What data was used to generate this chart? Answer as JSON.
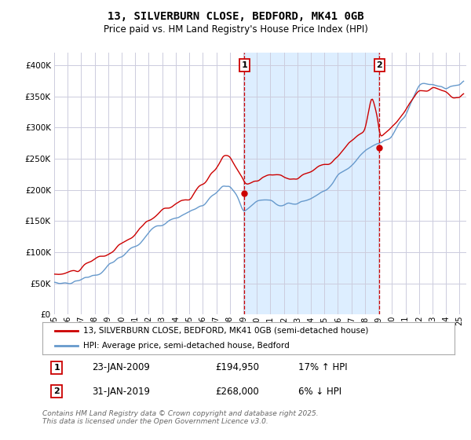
{
  "title": "13, SILVERBURN CLOSE, BEDFORD, MK41 0GB",
  "subtitle": "Price paid vs. HM Land Registry's House Price Index (HPI)",
  "fig_background": "#ffffff",
  "plot_background": "#ffffff",
  "shade_color": "#ddeeff",
  "grid_color": "#ccccdd",
  "red_color": "#cc0000",
  "blue_color": "#6699cc",
  "ylim": [
    0,
    420000
  ],
  "yticks": [
    0,
    50000,
    100000,
    150000,
    200000,
    250000,
    300000,
    350000,
    400000
  ],
  "legend_label_red": "13, SILVERBURN CLOSE, BEDFORD, MK41 0GB (semi-detached house)",
  "legend_label_blue": "HPI: Average price, semi-detached house, Bedford",
  "marker1_year": 2009.07,
  "marker1_label": "1",
  "marker1_date": "23-JAN-2009",
  "marker1_price": "£194,950",
  "marker1_hpi": "17% ↑ HPI",
  "marker1_value": 194950,
  "marker2_year": 2019.08,
  "marker2_label": "2",
  "marker2_date": "31-JAN-2019",
  "marker2_price": "£268,000",
  "marker2_hpi": "6% ↓ HPI",
  "marker2_value": 268000,
  "footer": "Contains HM Land Registry data © Crown copyright and database right 2025.\nThis data is licensed under the Open Government Licence v3.0."
}
